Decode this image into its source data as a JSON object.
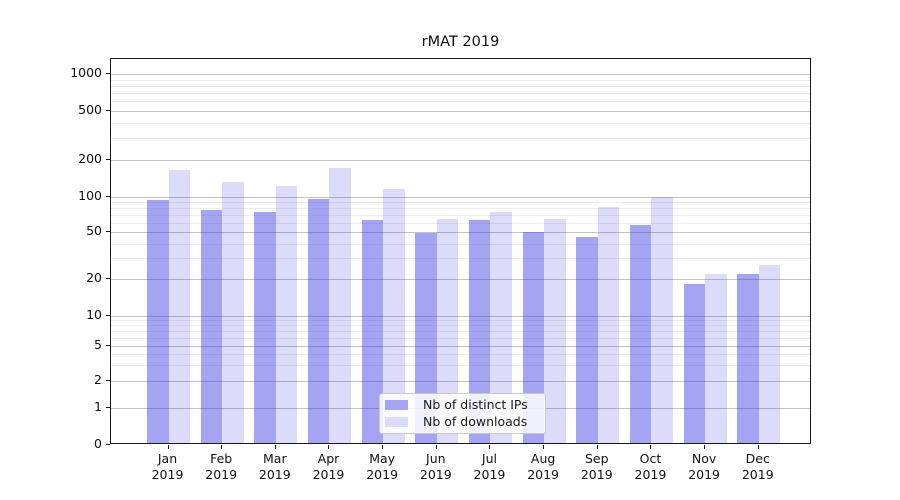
{
  "title": "rMAT 2019",
  "chart_data": {
    "type": "bar",
    "title": "rMAT 2019",
    "categories": [
      "Jan 2019",
      "Feb 2019",
      "Mar 2019",
      "Apr 2019",
      "May 2019",
      "Jun 2019",
      "Jul 2019",
      "Aug 2019",
      "Sep 2019",
      "Oct 2019",
      "Nov 2019",
      "Dec 2019"
    ],
    "series": [
      {
        "name": "Nb of distinct IPs",
        "color_key": "bar_ips",
        "values": [
          93,
          77,
          74,
          96,
          64,
          49,
          63,
          50,
          46,
          58,
          18,
          22
        ]
      },
      {
        "name": "Nb of downloads",
        "color_key": "bar_downloads",
        "values": [
          165,
          132,
          122,
          170,
          116,
          65,
          74,
          65,
          82,
          100,
          22,
          26
        ]
      }
    ],
    "xlabel": "",
    "ylabel": "",
    "yscale": "symlog",
    "yticks": [
      0,
      1,
      2,
      5,
      10,
      20,
      50,
      100,
      200,
      500,
      1000
    ],
    "ylim": [
      0,
      1300
    ],
    "grid": true,
    "legend_position": "lower center"
  },
  "colors": {
    "bar_ips": "rgba(47,47,226,0.44)",
    "bar_downloads": "rgba(47,47,226,0.17)",
    "legend_swatch_ips": "#a4a4f2",
    "legend_swatch_downloads": "#dcdcfa",
    "gridline_major": "#c3c3c3",
    "gridline_minor": "#ededed",
    "axis": "#1a1a1a"
  }
}
